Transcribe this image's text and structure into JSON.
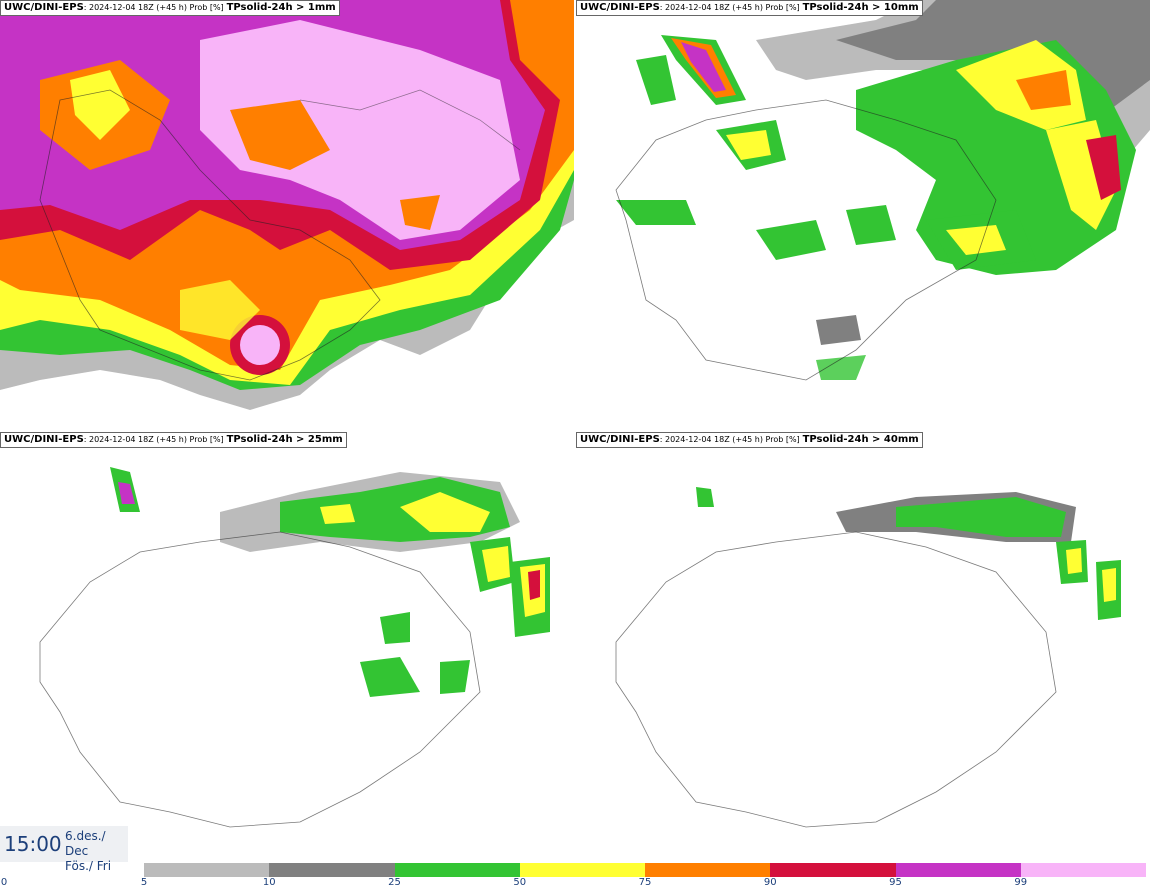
{
  "panels": [
    {
      "model": "UWC/DINI-EPS",
      "meta": ": 2024-12-04 18Z (+45 h) Prob [%]",
      "variable": "TPsolid-24h > 1mm"
    },
    {
      "model": "UWC/DINI-EPS",
      "meta": ": 2024-12-04 18Z (+45 h) Prob [%]",
      "variable": "TPsolid-24h > 10mm"
    },
    {
      "model": "UWC/DINI-EPS",
      "meta": ": 2024-12-04 18Z (+45 h) Prob [%]",
      "variable": "TPsolid-24h > 25mm"
    },
    {
      "model": "UWC/DINI-EPS",
      "meta": ": 2024-12-04 18Z (+45 h) Prob [%]",
      "variable": "TPsolid-24h > 40mm"
    }
  ],
  "time": {
    "clock": "15:00",
    "date_line1": "6.des./ Dec",
    "date_line2": "Fös./ Fri"
  },
  "colorbar": {
    "ticks": [
      "0",
      "5",
      "10",
      "25",
      "50",
      "75",
      "90",
      "95",
      "99"
    ],
    "colors": [
      "#ffffff",
      "#bbbbbb",
      "#808080",
      "#33c433",
      "#ffff33",
      "#ff7f00",
      "#d4103c",
      "#c533c5",
      "#f8b4f8"
    ]
  }
}
